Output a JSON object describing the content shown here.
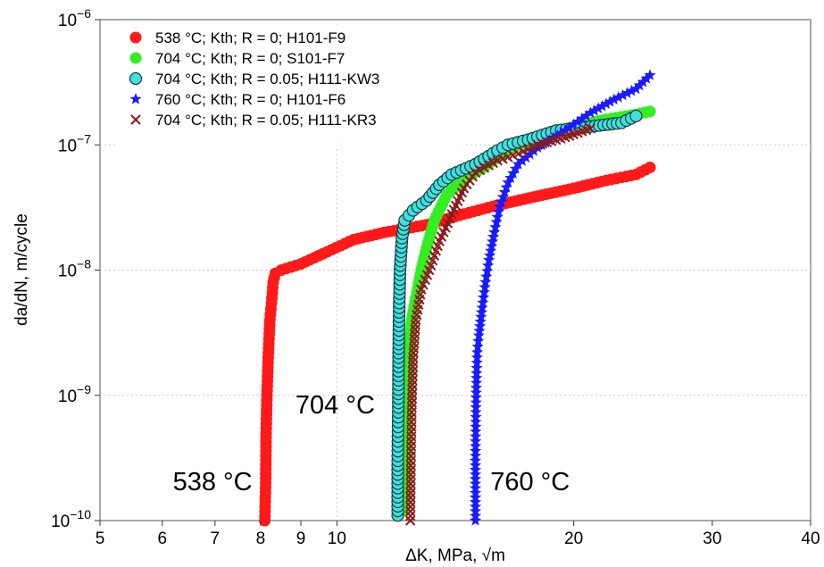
{
  "chart_data": {
    "type": "scatter",
    "title": "",
    "xlabel": "ΔK, MPa, √m",
    "ylabel": "da/dN, m/cycle",
    "xscale": "log",
    "yscale": "log",
    "xlim": [
      5,
      40
    ],
    "ylim": [
      1e-10,
      1e-06
    ],
    "grid": "dotted light gray at decades",
    "legend_position": "top-left",
    "x_ticks": [
      {
        "v": 5,
        "label": "5"
      },
      {
        "v": 6,
        "label": "6"
      },
      {
        "v": 7,
        "label": "7"
      },
      {
        "v": 8,
        "label": "8"
      },
      {
        "v": 9,
        "label": "9"
      },
      {
        "v": 10,
        "label": "10"
      },
      {
        "v": 20,
        "label": "20"
      },
      {
        "v": 30,
        "label": "30"
      },
      {
        "v": 40,
        "label": "40"
      }
    ],
    "y_ticks": [
      {
        "v": 1e-10,
        "mant": "10",
        "exp": "−10"
      },
      {
        "v": 1e-09,
        "mant": "10",
        "exp": "−9"
      },
      {
        "v": 1e-08,
        "mant": "10",
        "exp": "−8"
      },
      {
        "v": 1e-07,
        "mant": "10",
        "exp": "−7"
      },
      {
        "v": 1e-06,
        "mant": "10",
        "exp": "−6"
      }
    ],
    "series": [
      {
        "name": "538 °C; Kth; R = 0; H101-F9",
        "color": "#ff1a1a",
        "marker": "circle",
        "points": [
          [
            8.1,
            1e-10
          ],
          [
            8.12,
            2e-10
          ],
          [
            8.13,
            5e-10
          ],
          [
            8.15,
            1e-09
          ],
          [
            8.18,
            2e-09
          ],
          [
            8.22,
            4e-09
          ],
          [
            8.27,
            6e-09
          ],
          [
            8.3,
            8e-09
          ],
          [
            8.35,
            9.4e-09
          ],
          [
            8.5,
            1e-08
          ],
          [
            9.0,
            1.12e-08
          ],
          [
            9.6,
            1.35e-08
          ],
          [
            10.5,
            1.75e-08
          ],
          [
            11.5,
            2e-08
          ],
          [
            13,
            2.3e-08
          ],
          [
            14.5,
            2.8e-08
          ],
          [
            16,
            3.3e-08
          ],
          [
            18,
            3.9e-08
          ],
          [
            20,
            4.5e-08
          ],
          [
            22,
            5.2e-08
          ],
          [
            24,
            5.8e-08
          ],
          [
            25,
            6.6e-08
          ]
        ]
      },
      {
        "name": "704 °C; Kth; R = 0; S101-F7",
        "color": "#33ee22",
        "marker": "circle",
        "points": [
          [
            12.2,
            1.2e-10
          ],
          [
            12.25,
            3e-10
          ],
          [
            12.3,
            8e-10
          ],
          [
            12.35,
            2e-09
          ],
          [
            12.45,
            4e-09
          ],
          [
            12.6,
            6e-09
          ],
          [
            12.8,
            1e-08
          ],
          [
            13,
            1.5e-08
          ],
          [
            13.3,
            2.5e-08
          ],
          [
            13.8,
            4e-08
          ],
          [
            14.5,
            5.3e-08
          ],
          [
            15.3,
            6.5e-08
          ],
          [
            16,
            8e-08
          ],
          [
            17,
            1e-07
          ],
          [
            18.5,
            1.2e-07
          ],
          [
            20,
            1.4e-07
          ],
          [
            22,
            1.6e-07
          ],
          [
            24,
            1.75e-07
          ],
          [
            25,
            1.85e-07
          ]
        ]
      },
      {
        "name": "704 °C; Kth; R = 0.05; H111-KW3",
        "color": "#40e0e0",
        "marker": "circle-outline",
        "points": [
          [
            11.95,
            1.1e-10
          ],
          [
            11.95,
            3e-10
          ],
          [
            11.97,
            8e-10
          ],
          [
            11.98,
            2e-09
          ],
          [
            12.0,
            5e-09
          ],
          [
            12.03,
            1e-08
          ],
          [
            12.1,
            1.8e-08
          ],
          [
            12.2,
            2.5e-08
          ],
          [
            12.5,
            3e-08
          ],
          [
            13,
            3.6e-08
          ],
          [
            13.5,
            4.8e-08
          ],
          [
            14,
            5.8e-08
          ],
          [
            15,
            7e-08
          ],
          [
            16,
            9e-08
          ],
          [
            16.5,
            1e-07
          ],
          [
            17.5,
            1.1e-07
          ],
          [
            19,
            1.3e-07
          ],
          [
            21,
            1.4e-07
          ],
          [
            23,
            1.5e-07
          ],
          [
            24,
            1.7e-07
          ]
        ]
      },
      {
        "name": "760 °C; Kth; R = 0; H101-F6",
        "color": "#1a1aff",
        "marker": "star",
        "points": [
          [
            15,
            1e-10
          ],
          [
            15,
            3e-10
          ],
          [
            15.02,
            8e-10
          ],
          [
            15.05,
            1.5e-09
          ],
          [
            15.08,
            2.2e-09
          ],
          [
            15.15,
            3e-09
          ],
          [
            15.3,
            5e-09
          ],
          [
            15.45,
            8e-09
          ],
          [
            15.6,
            1.2e-08
          ],
          [
            15.85,
            2e-08
          ],
          [
            16.1,
            3.2e-08
          ],
          [
            16.5,
            5e-08
          ],
          [
            17,
            7e-08
          ],
          [
            18,
            9.5e-08
          ],
          [
            19.5,
            1.3e-07
          ],
          [
            21,
            1.8e-07
          ],
          [
            22.5,
            2.3e-07
          ],
          [
            24,
            2.8e-07
          ],
          [
            25,
            3.6e-07
          ]
        ]
      },
      {
        "name": "704 °C; Kth; R = 0.05; H111-KR3",
        "color": "#8b1a1a",
        "marker": "x",
        "points": [
          [
            12.4,
            1e-10
          ],
          [
            12.42,
            3e-10
          ],
          [
            12.45,
            8e-10
          ],
          [
            12.5,
            2e-09
          ],
          [
            12.6,
            4e-09
          ],
          [
            12.8,
            7e-09
          ],
          [
            13.1,
            1e-08
          ],
          [
            13.5,
            1.7e-08
          ],
          [
            14,
            2.8e-08
          ],
          [
            14.5,
            4.5e-08
          ],
          [
            15,
            6e-08
          ],
          [
            16,
            7.5e-08
          ],
          [
            17,
            8.5e-08
          ],
          [
            18,
            1e-07
          ],
          [
            19.5,
            1.15e-07
          ],
          [
            21,
            1.35e-07
          ]
        ]
      }
    ],
    "annotations": [
      {
        "text": "538 °C",
        "x": 6.95,
        "y": 1.75e-10
      },
      {
        "text": "704 °C",
        "x": 9.95,
        "y": 7.2e-10
      },
      {
        "text": "760 °C",
        "x": 17.6,
        "y": 1.75e-10
      }
    ]
  }
}
